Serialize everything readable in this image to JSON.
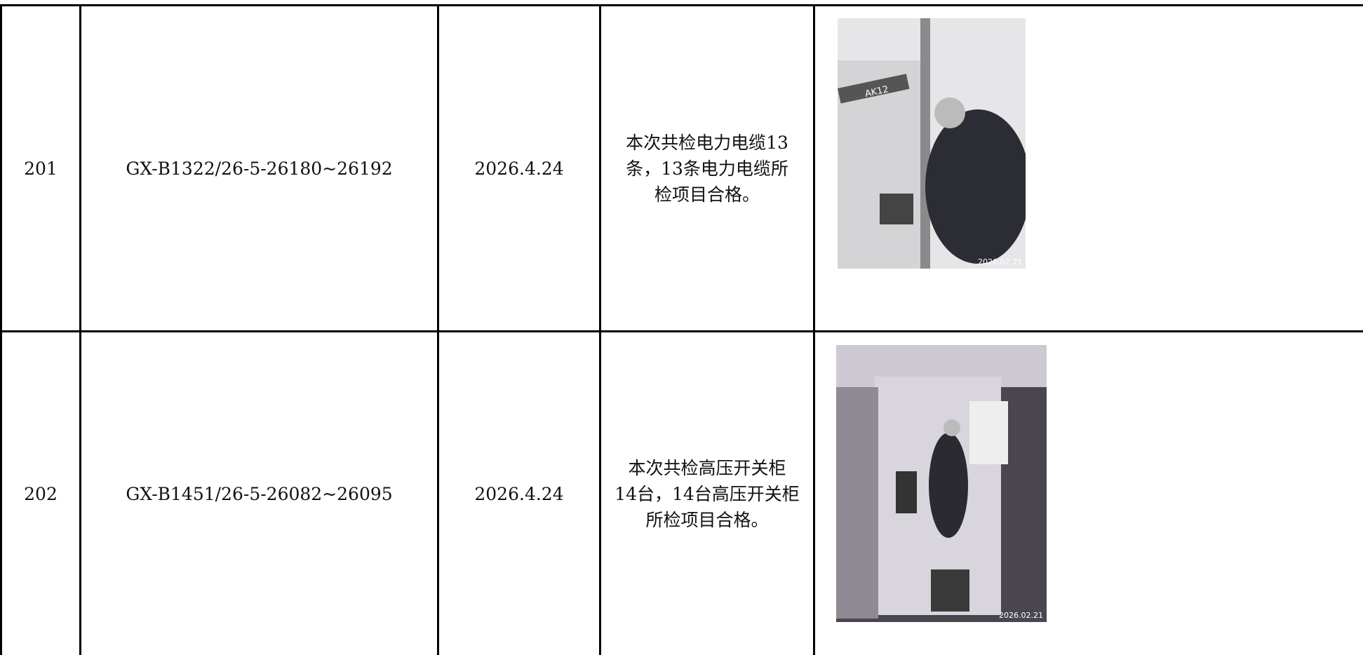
{
  "table": {
    "rows": [
      {
        "index": "201",
        "code": "GX-B1322/26-5-26180~26192",
        "date": "2026.4.24",
        "result": [
          "本次共检电力电缆13",
          "条，13条电力电缆所",
          "检项目合格。"
        ],
        "photo": {
          "stamp": "2026.02.21",
          "sign": "AK12"
        }
      },
      {
        "index": "202",
        "code": "GX-B1451/26-5-26082~26095",
        "date": "2026.4.24",
        "result": [
          "本次共检高压开关柜",
          "14台，14台高压开关柜",
          "所检项目合格。"
        ],
        "photo": {
          "stamp": "2026.02.21"
        }
      }
    ]
  }
}
